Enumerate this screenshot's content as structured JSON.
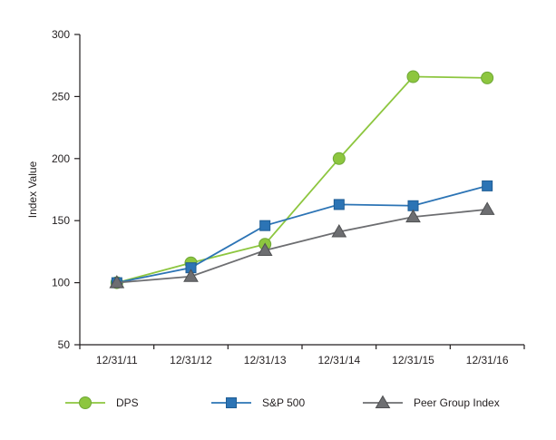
{
  "chart_data": {
    "type": "line",
    "title": "",
    "xlabel": "",
    "ylabel": "Index Value",
    "ylim": [
      50,
      300
    ],
    "yticks": [
      50,
      100,
      150,
      200,
      250,
      300
    ],
    "categories": [
      "12/31/11",
      "12/31/12",
      "12/31/13",
      "12/31/14",
      "12/31/15",
      "12/31/16"
    ],
    "series": [
      {
        "name": "DPS",
        "marker": "circle",
        "color": "#8dc63f",
        "marker_stroke": "#6fa836",
        "values": [
          100,
          116,
          131,
          200,
          266,
          265
        ]
      },
      {
        "name": "S&P 500",
        "marker": "square",
        "color": "#2c74b5",
        "marker_stroke": "#1f5d94",
        "values": [
          100,
          112,
          146,
          163,
          162,
          178
        ]
      },
      {
        "name": "Peer Group Index",
        "marker": "triangle",
        "color": "#6d6e71",
        "marker_stroke": "#4f5052",
        "values": [
          100,
          105,
          126,
          141,
          153,
          159
        ]
      }
    ],
    "legend_position": "bottom",
    "grid": false,
    "axis_color": "#231f20",
    "text_color": "#231f20"
  }
}
